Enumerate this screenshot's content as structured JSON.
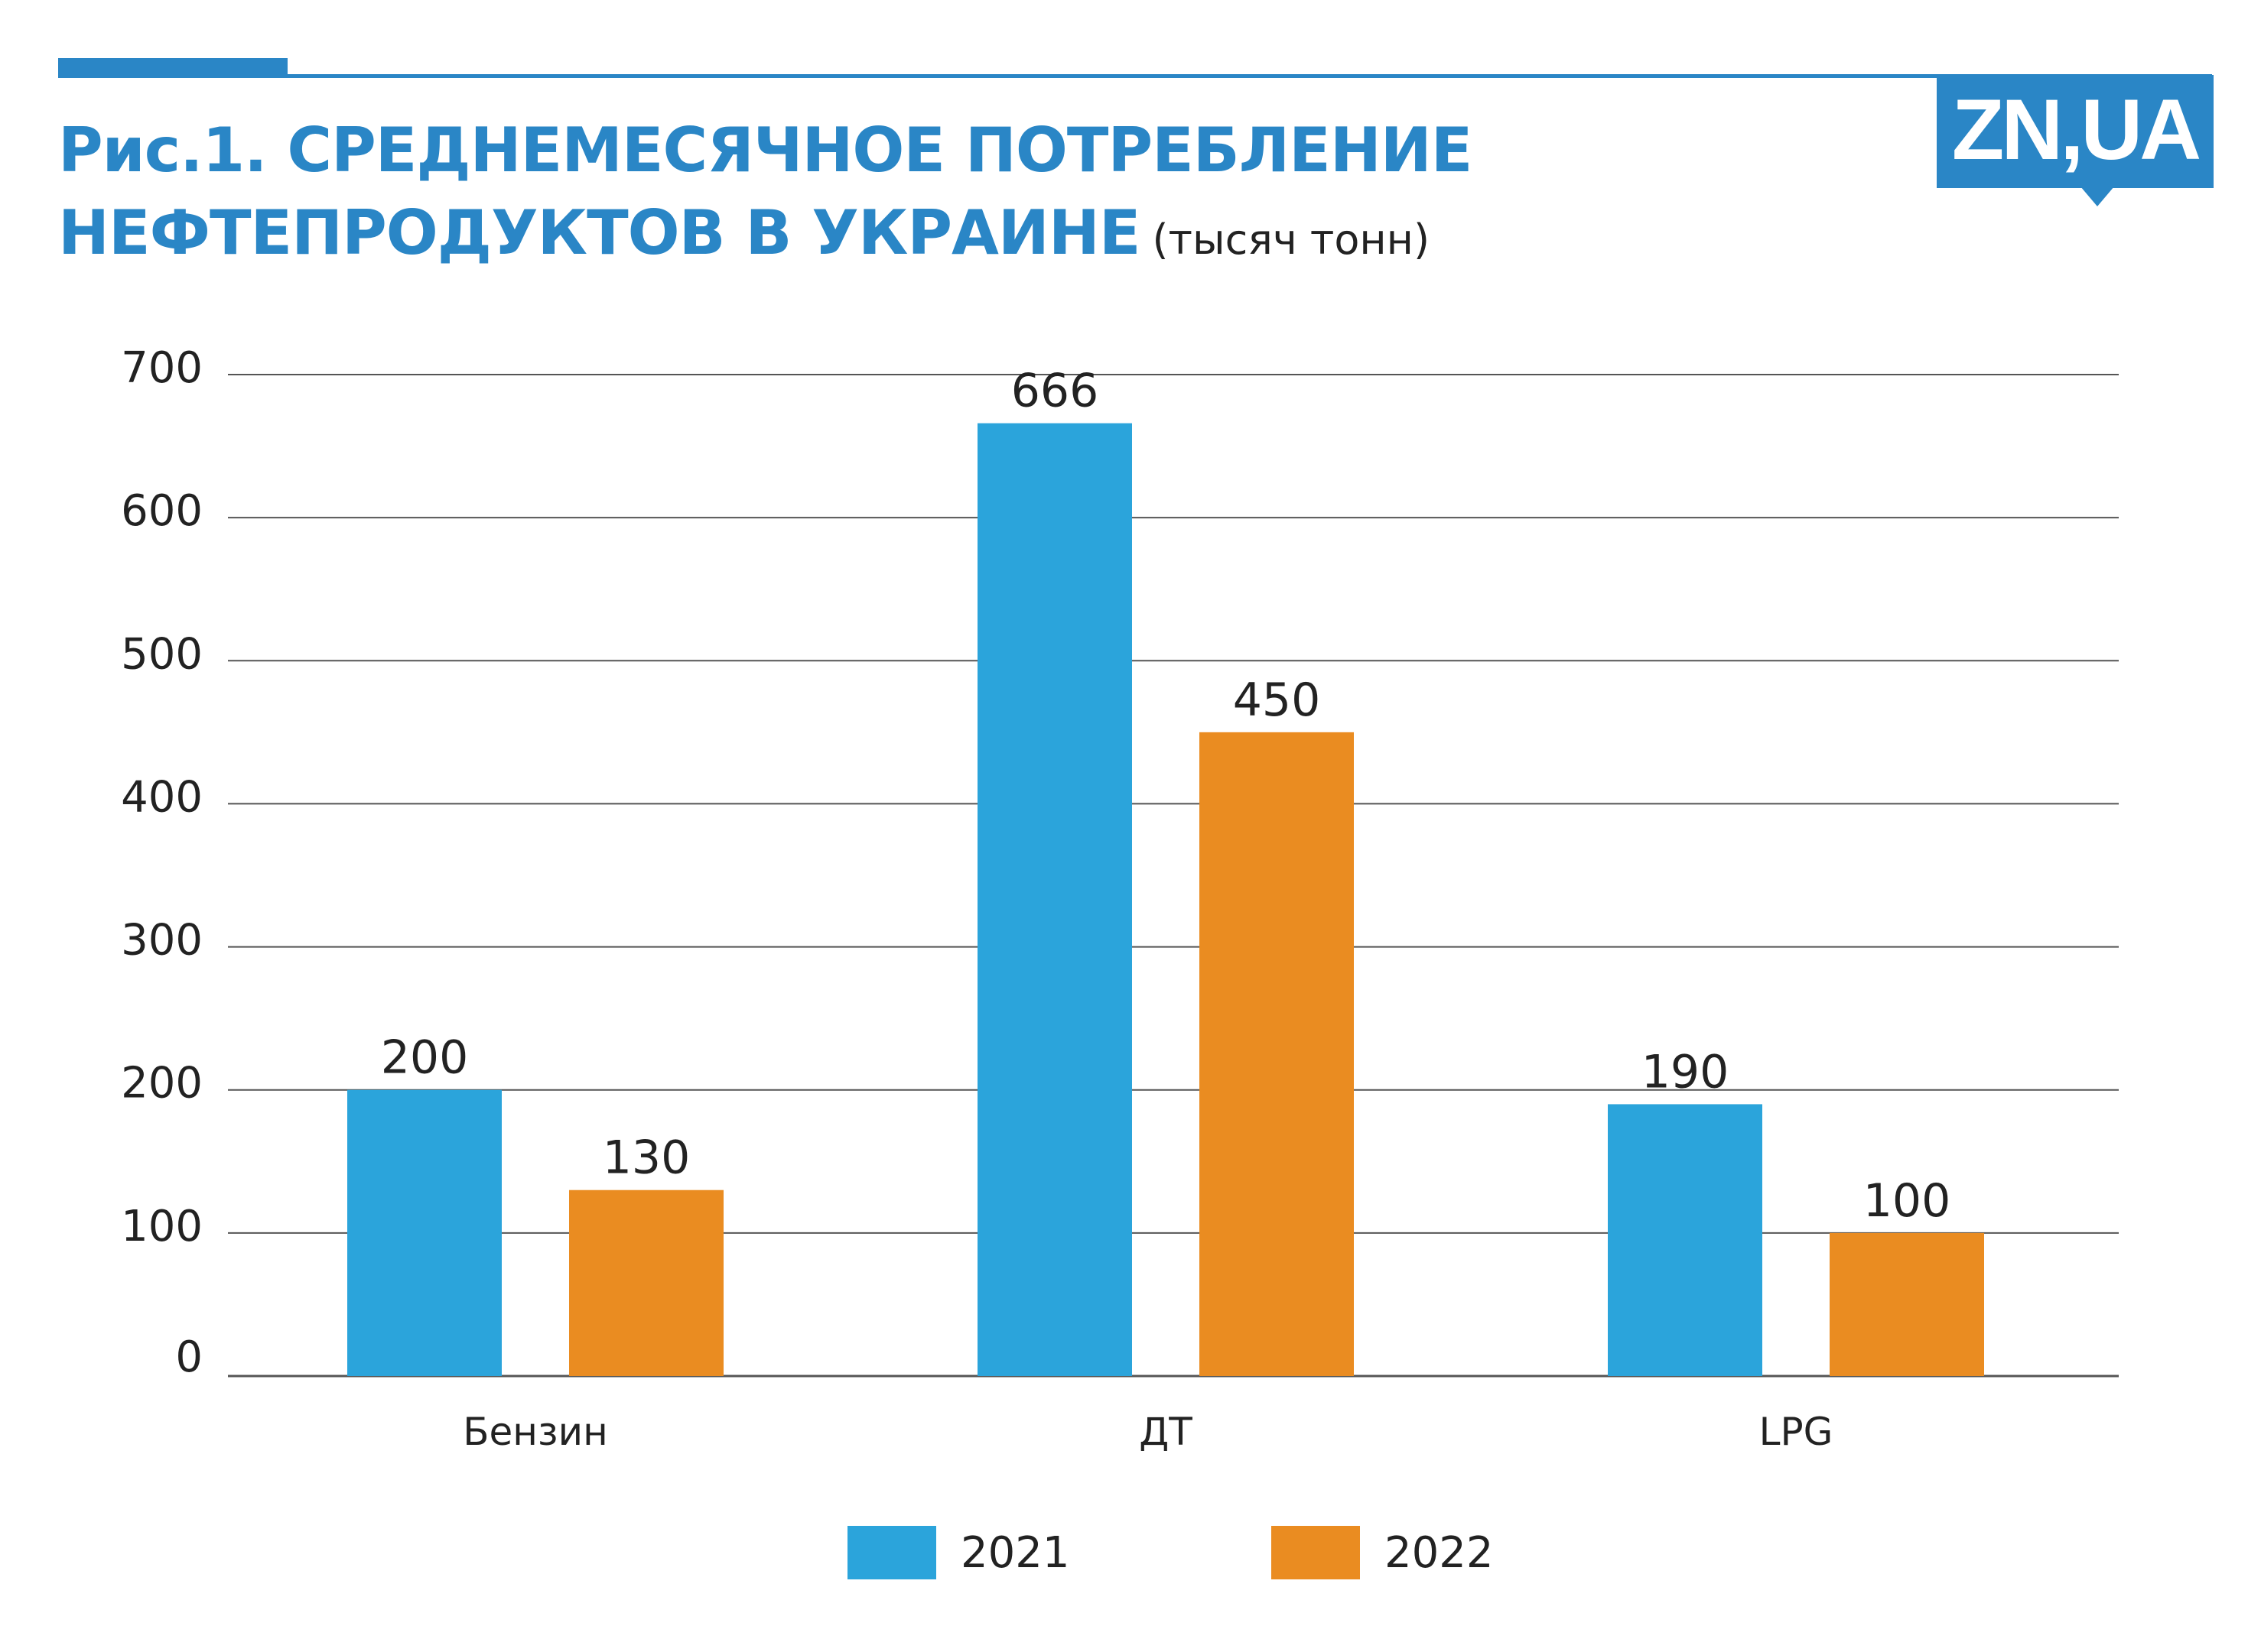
{
  "title_line1": "Рис.1. СРЕДНЕМЕСЯЧНОЕ ПОТРЕБЛЕНИЕ",
  "title_line2": "НЕФТЕПРОДУКТОВ В УКРАИНЕ",
  "subtitle": "(тысяч тонн)",
  "logo_text": "ZN,UA",
  "colors": {
    "accent": "#2a86c6",
    "series_2021": "#2ba4db",
    "series_2022": "#ea8c21",
    "grid": "#555555"
  },
  "chart_data": {
    "type": "bar",
    "title": "Рис.1. СРЕДНЕМЕСЯЧНОЕ ПОТРЕБЛЕНИЕ НЕФТЕПРОДУКТОВ В УКРАИНЕ",
    "subtitle": "(тысяч тонн)",
    "categories": [
      "Бензин",
      "ДТ",
      "LPG"
    ],
    "series": [
      {
        "name": "2021",
        "values": [
          200,
          666,
          190
        ]
      },
      {
        "name": "2022",
        "values": [
          130,
          450,
          100
        ]
      }
    ],
    "ylim": [
      0,
      700
    ],
    "yticks": [
      0,
      100,
      200,
      300,
      400,
      500,
      600,
      700
    ],
    "grid": true,
    "legend": "bottom"
  }
}
